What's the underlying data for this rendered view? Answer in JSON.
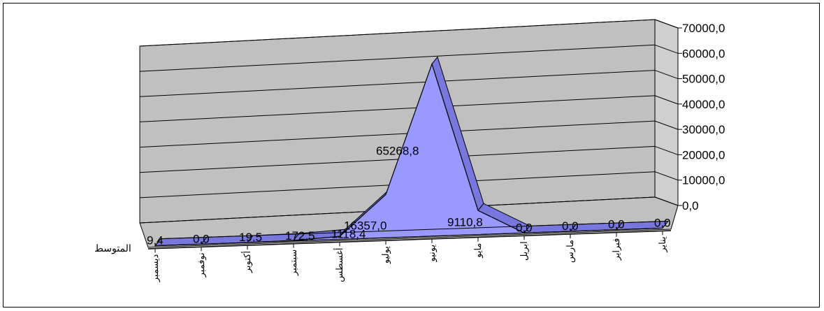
{
  "chart_data": {
    "type": "area",
    "style": "3d",
    "categories": [
      "ديسمبر",
      "نوفمبر",
      "أكتوبر",
      "سبتمبر",
      "أغسطس",
      "يوليو",
      "يونيو",
      "مايو",
      "ابريل",
      "مارس",
      "فبراير",
      "يناير"
    ],
    "series": [
      {
        "name": "المتوسط",
        "values": [
          9.4,
          0.0,
          19.5,
          172.5,
          1118.4,
          16357.0,
          65268.8,
          9110.8,
          0.0,
          0.0,
          0.0,
          0.0
        ]
      }
    ],
    "value_labels": [
      "9,4",
      "0,0",
      "19,5",
      "172,5",
      "1118,4",
      "16357,0",
      "65268,8",
      "9110,8",
      "0,0",
      "0,0",
      "0,0",
      "0,0"
    ],
    "y_ticks": [
      "0,0",
      "10000,0",
      "20000,0",
      "30000,0",
      "40000,0",
      "50000,0",
      "60000,0",
      "70000,0"
    ],
    "ylim": [
      0,
      70000
    ],
    "grid": true,
    "legend": "none",
    "colors": {
      "fill": "#9999ff",
      "top": "#7777dd",
      "wall": "#c0c0c0",
      "floor": "#c0c0c0",
      "grid": "#000000"
    }
  }
}
